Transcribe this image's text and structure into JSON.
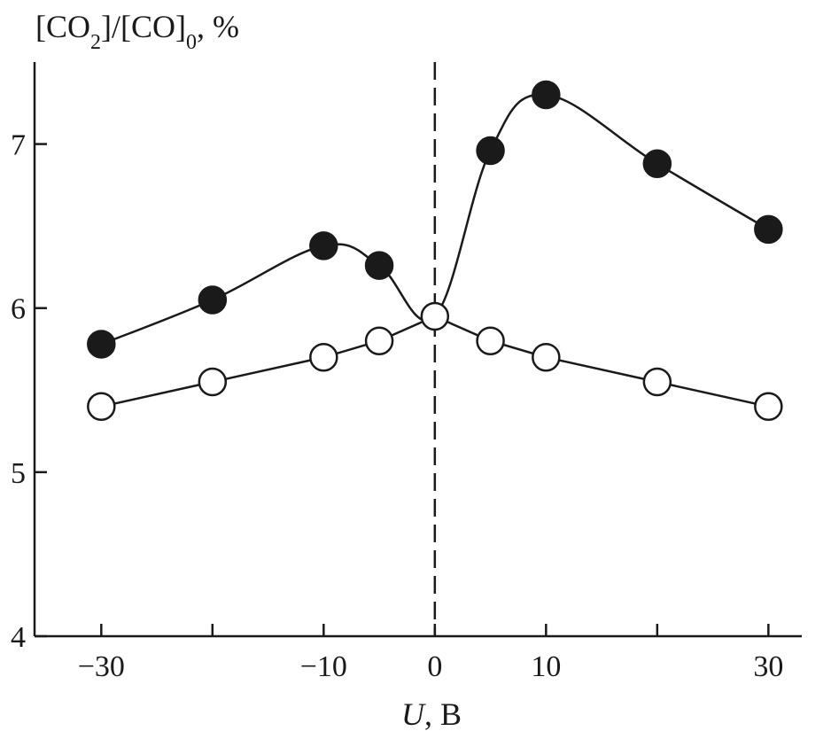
{
  "chart_data": {
    "type": "line",
    "ylabel_parts": [
      "[CO",
      "2",
      "]/[CO]",
      "0",
      ", %"
    ],
    "xlabel_var": "U",
    "xlabel_unit": ", В",
    "xlim": [
      -36,
      33
    ],
    "ylim": [
      4,
      7.5
    ],
    "xticks": [
      -30,
      -10,
      0,
      10,
      30
    ],
    "xtick_minor": [
      -20,
      20
    ],
    "xtick_labels": [
      "−30",
      "−10",
      "0",
      "10",
      "30"
    ],
    "yticks": [
      4,
      5,
      6,
      7
    ],
    "ytick_labels": [
      "4",
      "5",
      "6",
      "7"
    ],
    "reference_line_x": 0,
    "grid": false,
    "series": [
      {
        "marker": "filled-circle",
        "x": [
          -30,
          -20,
          -10,
          -5,
          0,
          5,
          10,
          20,
          30
        ],
        "y": [
          5.78,
          6.05,
          6.38,
          6.26,
          5.95,
          6.96,
          7.3,
          6.88,
          6.48
        ],
        "marker_x": [
          -30,
          -20,
          -10,
          -5,
          5,
          10,
          20,
          30
        ],
        "marker_y": [
          5.78,
          6.05,
          6.38,
          6.26,
          6.96,
          7.3,
          6.88,
          6.48
        ]
      },
      {
        "marker": "open-circle",
        "x": [
          -30,
          -20,
          -10,
          -5,
          0,
          5,
          10,
          20,
          30
        ],
        "y": [
          5.4,
          5.55,
          5.7,
          5.8,
          5.95,
          5.8,
          5.7,
          5.55,
          5.4
        ],
        "marker_x": [
          -30,
          -20,
          -10,
          -5,
          0,
          5,
          10,
          20,
          30
        ],
        "marker_y": [
          5.4,
          5.55,
          5.7,
          5.8,
          5.95,
          5.8,
          5.7,
          5.55,
          5.4
        ]
      }
    ],
    "colors": {
      "ink": "#1a1a1a",
      "marker_fill_open": "#ffffff"
    }
  }
}
